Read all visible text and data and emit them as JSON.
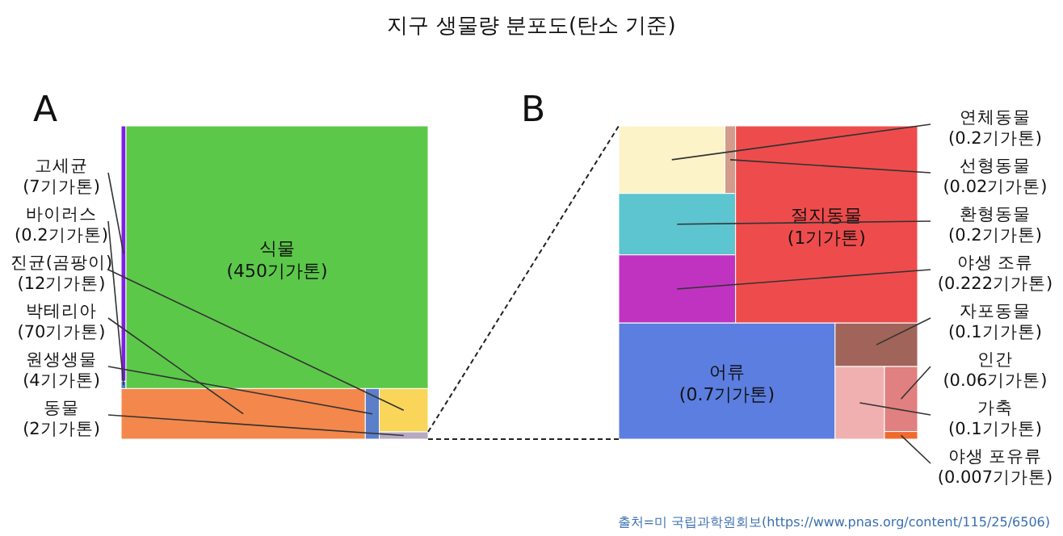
{
  "chart_data": [
    {
      "type": "other",
      "title": "지구 생물량 분포도(탄소 기준)",
      "annotations": [
        "A"
      ],
      "categories": [
        "고세균",
        "바이러스",
        "식물",
        "박테리아",
        "원생생물",
        "진균(곰팡이)",
        "동물"
      ],
      "values": [
        7,
        0.2,
        450,
        70,
        4,
        12,
        2
      ],
      "value_labels": [
        "(7기가톤)",
        "(0.2기가톤)",
        "(450기가톤)",
        "(70기가톤)",
        "(4기가톤)",
        "(12기가톤)",
        "(2기가톤)"
      ],
      "colors": [
        "#7d1fe0",
        "#4a7ad0",
        "#5cc84a",
        "#f4874b",
        "#5b7fc9",
        "#f9d65a",
        "#b8a9c0"
      ]
    },
    {
      "type": "other",
      "annotations": [
        "B",
        "출처=미 국립과학원회보(https://www.pnas.org/content/115/25/6506)"
      ],
      "categories": [
        "연체동물",
        "선형동물",
        "환형동물",
        "야생 조류",
        "절지동물",
        "어류",
        "자포동물",
        "가축",
        "인간",
        "야생 포유류"
      ],
      "values": [
        0.2,
        0.02,
        0.2,
        0.222,
        1,
        0.7,
        0.1,
        0.1,
        0.06,
        0.007
      ],
      "value_labels": [
        "(0.2기가톤)",
        "(0.02기가톤)",
        "(0.2기가톤)",
        "(0.222기가톤)",
        "(1기가톤)",
        "(0.7기가톤)",
        "(0.1기가톤)",
        "(0.1기가톤)",
        "(0.06기가톤)",
        "(0.007기가톤)"
      ],
      "colors": [
        "#fdf3c8",
        "#d49a8a",
        "#5cc5d0",
        "#c033c0",
        "#ee4c4c",
        "#5b7ee0",
        "#a0645a",
        "#f0b0b0",
        "#e08080",
        "#f06a30"
      ]
    }
  ]
}
